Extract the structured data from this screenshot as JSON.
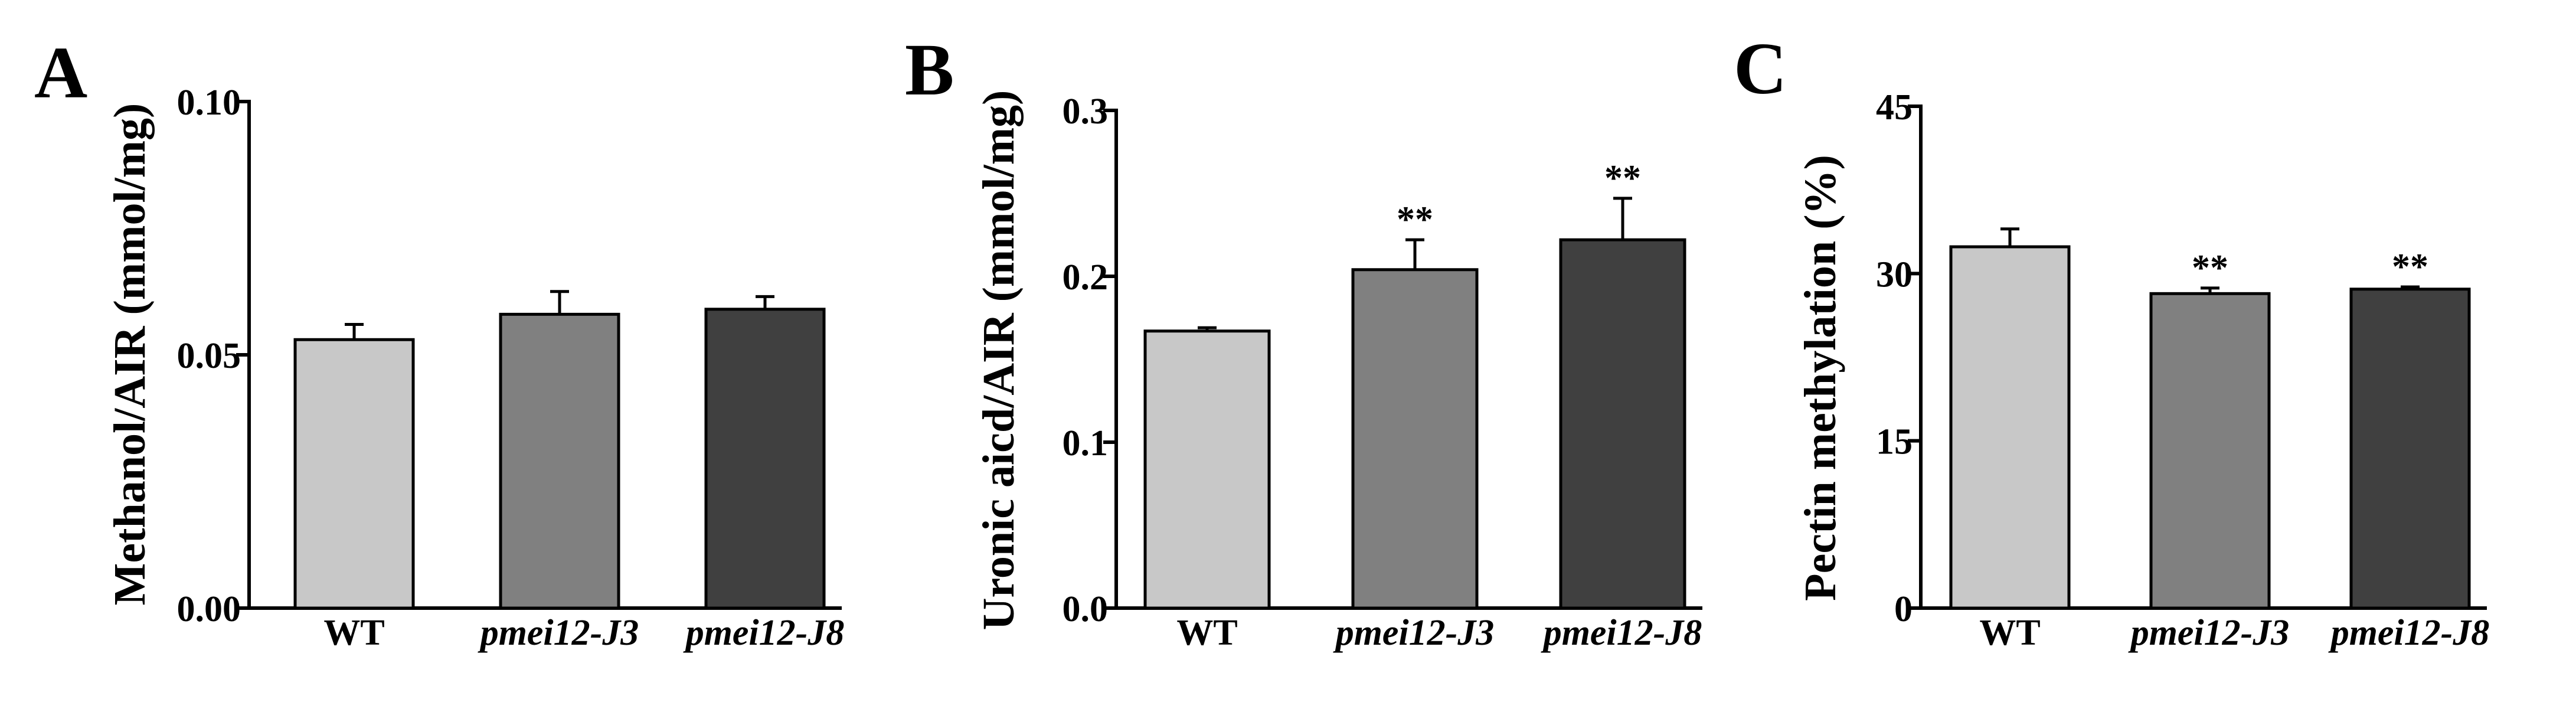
{
  "colors": {
    "bar_fills": [
      "#c8c8c8",
      "#808080",
      "#404040"
    ],
    "stroke": "#000000"
  },
  "chart_data": [
    {
      "type": "bar",
      "panel": "A",
      "title": "",
      "xlabel": "",
      "ylabel": "Methanol/AIR (mmol/mg)",
      "ylim": [
        0,
        0.1
      ],
      "yticks": [
        {
          "value": 0,
          "label": "0.00"
        },
        {
          "value": 0.05,
          "label": "0.05"
        },
        {
          "value": 0.1,
          "label": "0.10"
        }
      ],
      "categories": [
        "WT",
        "pmei12-J3",
        "pmei12-J8"
      ],
      "category_italic": [
        false,
        true,
        true
      ],
      "values": [
        0.053,
        0.058,
        0.059
      ],
      "errors": [
        0.003,
        0.0045,
        0.0025
      ],
      "significance": [
        "",
        "",
        ""
      ]
    },
    {
      "type": "bar",
      "panel": "B",
      "title": "",
      "xlabel": "",
      "ylabel": "Uronic aicd/AIR (mmol/mg)",
      "ylim": [
        0,
        0.3
      ],
      "yticks": [
        {
          "value": 0,
          "label": "0.0"
        },
        {
          "value": 0.1,
          "label": "0.1"
        },
        {
          "value": 0.2,
          "label": "0.2"
        },
        {
          "value": 0.3,
          "label": "0.3"
        }
      ],
      "categories": [
        "WT",
        "pmei12-J3",
        "pmei12-J8"
      ],
      "category_italic": [
        false,
        true,
        true
      ],
      "values": [
        0.167,
        0.204,
        0.222
      ],
      "errors": [
        0.002,
        0.018,
        0.025
      ],
      "significance": [
        "",
        "**",
        "**"
      ]
    },
    {
      "type": "bar",
      "panel": "C",
      "title": "",
      "xlabel": "",
      "ylabel": "Pectin methylation (%)",
      "ylim": [
        0,
        45
      ],
      "yticks": [
        {
          "value": 0,
          "label": "0"
        },
        {
          "value": 15,
          "label": "15"
        },
        {
          "value": 30,
          "label": "30"
        },
        {
          "value": 45,
          "label": "45"
        }
      ],
      "categories": [
        "WT",
        "pmei12-J3",
        "pmei12-J8"
      ],
      "category_italic": [
        false,
        true,
        true
      ],
      "values": [
        32.4,
        28.2,
        28.6
      ],
      "errors": [
        1.6,
        0.5,
        0.2
      ],
      "significance": [
        "",
        "**",
        "**"
      ]
    }
  ]
}
